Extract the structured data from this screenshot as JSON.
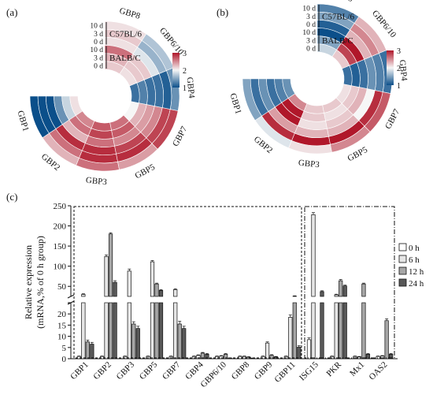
{
  "panels": {
    "a": "(a)",
    "b": "(b)",
    "c": "(c)"
  },
  "colors": {
    "low": "#0b4f8a",
    "mid": "#f6f6f6",
    "high": "#b0172a",
    "axis": "#111111"
  },
  "chart_data": [
    {
      "type": "heatmap",
      "panel": "(a)",
      "layout": "circular",
      "categories": [
        "GBP1",
        "GBP2",
        "GBP3",
        "GBP5",
        "GBP7",
        "GBP4",
        "GBP6/10",
        "GBP8"
      ],
      "rings": [
        {
          "strain": "C57BL/6",
          "day": "10 d",
          "values": [
            1.0,
            2.3,
            2.6,
            2.4,
            2.8,
            1.4,
            1.7,
            2.1
          ]
        },
        {
          "strain": "C57BL/6",
          "day": "3 d",
          "values": [
            1.0,
            2.6,
            2.9,
            2.9,
            2.8,
            1.1,
            1.6,
            2.2
          ]
        },
        {
          "strain": "C57BL/6",
          "day": "0 d",
          "values": [
            1.0,
            2.9,
            2.9,
            2.8,
            2.5,
            1.2,
            1.9,
            2.1
          ]
        },
        {
          "strain": "BALB/C",
          "day": "10 d",
          "values": [
            1.4,
            2.3,
            2.6,
            2.5,
            2.4,
            1.2,
            2.2,
            2.6
          ]
        },
        {
          "strain": "BALB/C",
          "day": "3 d",
          "values": [
            1.8,
            2.6,
            2.8,
            2.7,
            2.3,
            1.3,
            2.2,
            2.3
          ]
        },
        {
          "strain": "BALB/C",
          "day": "0 d",
          "values": [
            2.1,
            2.5,
            2.7,
            2.6,
            2.0,
            1.2,
            2.1,
            2.2
          ]
        }
      ],
      "legend_groups": [
        "C57BL/6",
        "BALB/C"
      ],
      "colorbar": {
        "ticks": [
          "3",
          "2",
          "1"
        ],
        "min": 1,
        "max": 3
      }
    },
    {
      "type": "heatmap",
      "panel": "(b)",
      "layout": "circular",
      "categories": [
        "GBP1",
        "GBP2",
        "GBP3",
        "GBP5",
        "GBP7",
        "GBP4",
        "GBP6/10",
        "GBP8"
      ],
      "rings": [
        {
          "strain": "C57BL/6",
          "day": "10 d",
          "values": [
            1.5,
            1.9,
            2.1,
            2.5,
            2.7,
            1.2,
            2.3,
            1.3
          ]
        },
        {
          "strain": "C57BL/6",
          "day": "3 d",
          "values": [
            1.2,
            2.9,
            3.0,
            3.0,
            2.9,
            1.3,
            2.5,
            1.5
          ]
        },
        {
          "strain": "C57BL/6",
          "day": "0 d",
          "values": [
            1.4,
            2.4,
            2.3,
            2.3,
            2.0,
            1.4,
            2.3,
            1.1
          ]
        },
        {
          "strain": "BALB/C",
          "day": "10 d",
          "values": [
            1.2,
            3.0,
            2.1,
            2.2,
            2.3,
            1.2,
            3.0,
            1.0
          ]
        },
        {
          "strain": "BALB/C",
          "day": "3 d",
          "values": [
            1.3,
            3.0,
            2.2,
            2.1,
            2.2,
            1.1,
            2.8,
            1.5
          ]
        },
        {
          "strain": "BALB/C",
          "day": "0 d",
          "values": [
            1.4,
            2.5,
            2.2,
            2.2,
            2.1,
            1.2,
            2.2,
            1.8
          ]
        }
      ],
      "legend_groups": [
        "C57BL/6",
        "BALB/C"
      ],
      "colorbar": {
        "ticks": [
          "3",
          "2",
          "1"
        ],
        "min": 1,
        "max": 3
      }
    },
    {
      "type": "bar",
      "panel": "(c)",
      "ylabel": "Relative  expression",
      "ylabel2": "(mRNA,% of 0 h group)",
      "y_ticks": [
        0,
        5,
        10,
        15,
        20,
        25,
        50,
        100,
        150,
        200,
        250
      ],
      "y_break": {
        "lower": [
          0,
          25
        ],
        "upper": [
          25,
          250
        ]
      },
      "categories": [
        "GBP1",
        "GBP2",
        "GBP3",
        "GBP5",
        "GBP7",
        "GBP4",
        "GBP6/10",
        "GBP8",
        "GBP9",
        "GBP11",
        "ISG15",
        "PKR",
        "Mx1",
        "OAS2"
      ],
      "series": [
        {
          "name": "0 h",
          "color": "#ffffff",
          "values": [
            1,
            1,
            1,
            1,
            1,
            1,
            1,
            1,
            1,
            1,
            8.5,
            1,
            1,
            1
          ],
          "errors": [
            0.2,
            0.2,
            0.2,
            0.2,
            0.2,
            0.2,
            0.2,
            0.2,
            0.2,
            0.2,
            0.8,
            0.2,
            0.2,
            0.2
          ]
        },
        {
          "name": "6 h",
          "color": "#e6e6e6",
          "values": [
            30,
            124,
            88,
            111,
            42,
            1.5,
            1.2,
            1.0,
            7.0,
            18.5,
            228,
            29,
            0.8,
            1.2
          ],
          "errors": [
            1.5,
            4,
            5,
            3,
            2,
            0.2,
            0.2,
            0.2,
            0.5,
            1.0,
            5,
            1.5,
            0.2,
            0.2
          ]
        },
        {
          "name": "12 h",
          "color": "#a6a6a6",
          "values": [
            7.5,
            180,
            15.5,
            56,
            15.5,
            2.5,
            2.0,
            0.7,
            1.5,
            25.5,
            0,
            64,
            56,
            17
          ],
          "errors": [
            0.8,
            3,
            1,
            2,
            1.2,
            0.3,
            0.3,
            0.2,
            0.3,
            1.0,
            0,
            3,
            2,
            0.8
          ]
        },
        {
          "name": "24 h",
          "color": "#595959",
          "values": [
            6.5,
            60,
            13.5,
            40,
            13.5,
            2.0,
            0.3,
            0.2,
            0.8,
            5.2,
            37,
            51,
            2.0,
            2.0
          ],
          "errors": [
            0.8,
            4,
            1,
            2,
            1,
            0.3,
            0.1,
            0.1,
            0.2,
            0.6,
            2,
            2,
            0.3,
            0.3
          ]
        }
      ],
      "legend": [
        "0 h",
        "6 h",
        "12 h",
        "24 h"
      ],
      "legend_placement": "right"
    }
  ]
}
